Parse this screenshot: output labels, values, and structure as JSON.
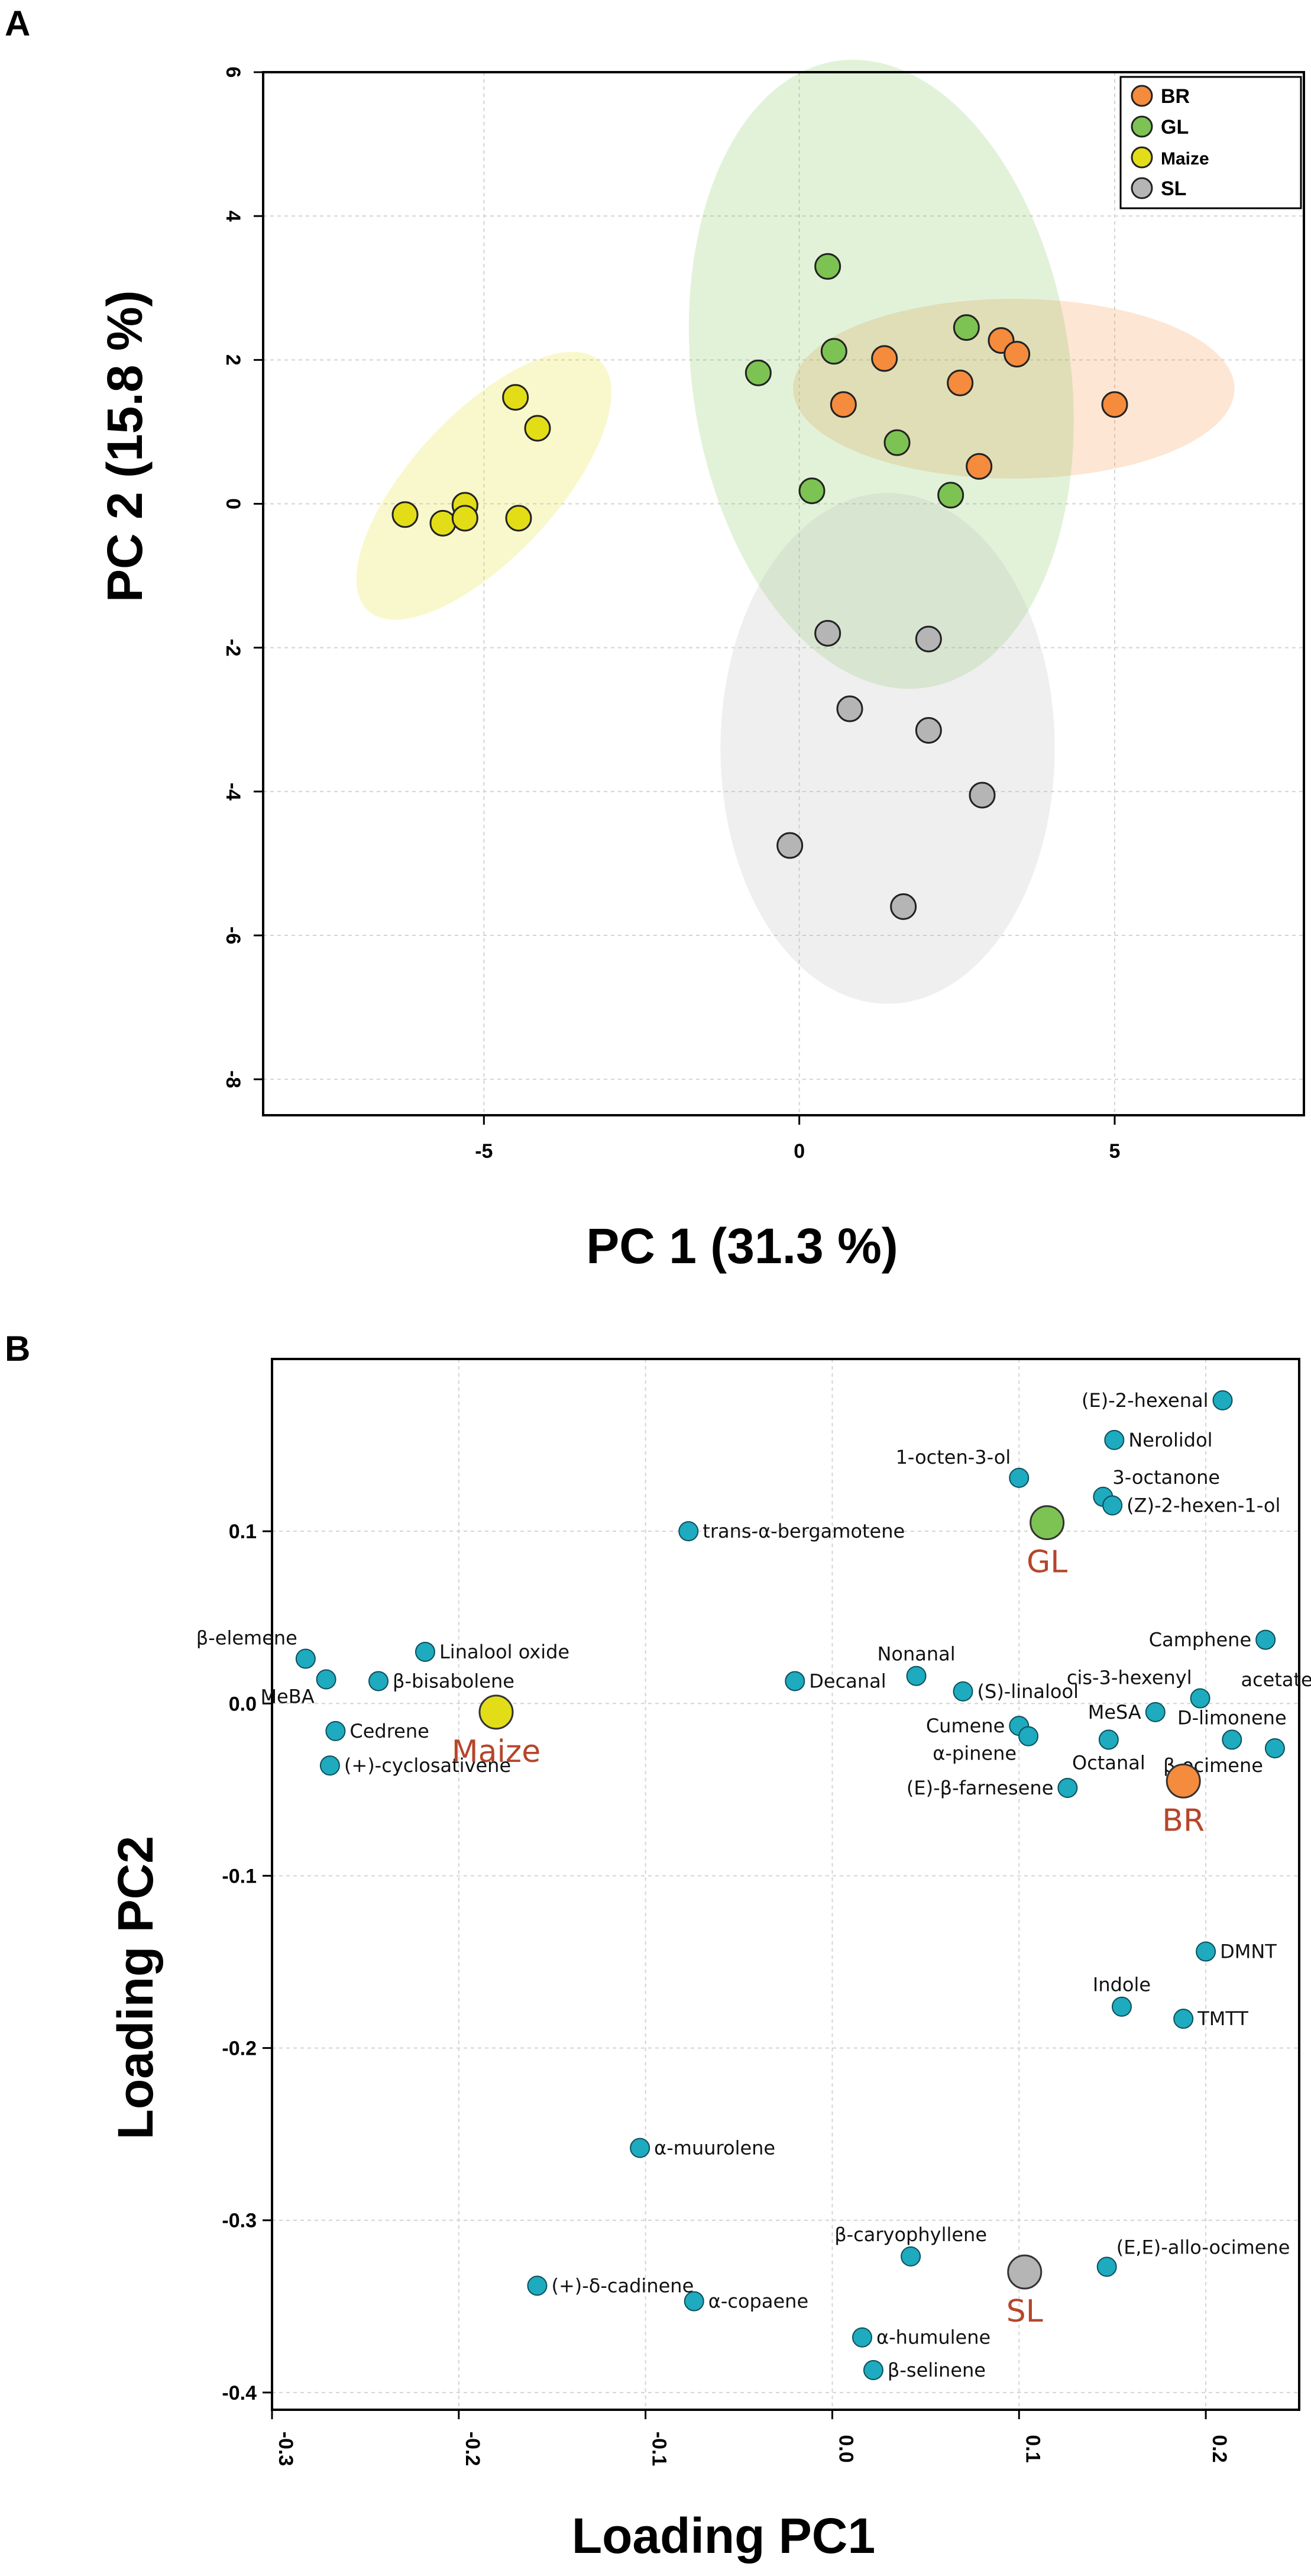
{
  "panels": {
    "a": "A",
    "b": "B"
  },
  "colors": {
    "BR": "#f58b3c",
    "GL": "#7dc353",
    "Maize": "#e3dd18",
    "SL": "#b5b5b5",
    "loading": "#1eaabf",
    "group_text": "#b5462a"
  },
  "chart_data": [
    {
      "type": "scatter",
      "xlabel": "PC 1 (31.3 %)",
      "ylabel": "PC 2 (15.8 %)",
      "xlim": [
        -8.5,
        8
      ],
      "ylim": [
        -8.5,
        6
      ],
      "xticks": [
        -5,
        0,
        5
      ],
      "yticks": [
        6,
        4,
        2,
        0,
        -2,
        -4,
        -6,
        -8
      ],
      "legend": [
        "BR",
        "GL",
        "Maize",
        "SL"
      ],
      "series": [
        {
          "name": "BR",
          "points": [
            [
              1.35,
              2.02
            ],
            [
              0.7,
              1.38
            ],
            [
              2.55,
              1.68
            ],
            [
              3.2,
              2.27
            ],
            [
              3.45,
              2.08
            ],
            [
              5.0,
              1.38
            ],
            [
              2.85,
              0.52
            ]
          ],
          "ellipse": {
            "cx": 3.4,
            "cy": 1.6,
            "rx": 3.5,
            "ry": 1.25,
            "angle": 0
          }
        },
        {
          "name": "GL",
          "points": [
            [
              0.45,
              3.3
            ],
            [
              -0.65,
              1.82
            ],
            [
              0.55,
              2.12
            ],
            [
              2.65,
              2.45
            ],
            [
              1.55,
              0.85
            ],
            [
              0.2,
              0.18
            ],
            [
              2.4,
              0.12
            ]
          ],
          "ellipse": {
            "cx": 1.3,
            "cy": 1.8,
            "rx": 3.0,
            "ry": 4.4,
            "angle": 8
          }
        },
        {
          "name": "Maize",
          "points": [
            [
              -4.5,
              1.48
            ],
            [
              -4.15,
              1.05
            ],
            [
              -6.25,
              -0.15
            ],
            [
              -5.3,
              -0.02
            ],
            [
              -5.65,
              -0.27
            ],
            [
              -5.3,
              -0.2
            ],
            [
              -4.45,
              -0.2
            ]
          ],
          "ellipse": {
            "cx": -5.0,
            "cy": 0.25,
            "rx": 2.7,
            "ry": 1.0,
            "angle": 47
          }
        },
        {
          "name": "SL",
          "points": [
            [
              0.45,
              -1.8
            ],
            [
              2.05,
              -1.88
            ],
            [
              0.8,
              -2.85
            ],
            [
              2.05,
              -3.15
            ],
            [
              2.9,
              -4.05
            ],
            [
              -0.15,
              -4.75
            ],
            [
              1.65,
              -5.6
            ]
          ],
          "ellipse": {
            "cx": 1.4,
            "cy": -3.4,
            "rx": 2.65,
            "ry": 3.55,
            "angle": 0
          }
        }
      ]
    },
    {
      "type": "scatter",
      "xlabel": "Loading PC1",
      "ylabel": "Loading PC2",
      "xlim": [
        -0.3,
        0.25
      ],
      "ylim": [
        -0.41,
        0.2
      ],
      "xticks": [
        "-0.3",
        "-0.2",
        "-0.1",
        "0.0",
        "0.1",
        "0.2"
      ],
      "yticks": [
        "0.1",
        "0.0",
        "-0.1",
        "-0.2",
        "-0.3",
        "-0.4"
      ],
      "points": [
        {
          "label": "(E)-2-hexenal",
          "x": 0.209,
          "y": 0.176,
          "side": "left"
        },
        {
          "label": "Nerolidol",
          "x": 0.151,
          "y": 0.153,
          "side": "right"
        },
        {
          "label": "1-octen-3-ol",
          "x": 0.1,
          "y": 0.131,
          "side": "left-up"
        },
        {
          "label": "3-octanone",
          "x": 0.145,
          "y": 0.12,
          "side": "right-up"
        },
        {
          "label": "(Z)-2-hexen-1-ol",
          "x": 0.15,
          "y": 0.115,
          "side": "right"
        },
        {
          "label": "trans-α-bergamotene",
          "x": -0.077,
          "y": 0.1,
          "side": "right"
        },
        {
          "label": "β-elemene",
          "x": -0.282,
          "y": 0.026,
          "side": "left-up"
        },
        {
          "label": "Linalool oxide",
          "x": -0.218,
          "y": 0.03,
          "side": "right"
        },
        {
          "label": "MeBA",
          "x": -0.271,
          "y": 0.014,
          "side": "left-down"
        },
        {
          "label": "β-bisabolene",
          "x": -0.243,
          "y": 0.013,
          "side": "right"
        },
        {
          "label": "Cedrene",
          "x": -0.266,
          "y": -0.016,
          "side": "right"
        },
        {
          "label": "(+)-cyclosativene",
          "x": -0.269,
          "y": -0.036,
          "side": "right"
        },
        {
          "label": "Nonanal",
          "x": 0.045,
          "y": 0.016,
          "side": "up"
        },
        {
          "label": "Decanal",
          "x": -0.02,
          "y": 0.013,
          "side": "right"
        },
        {
          "label": "(S)-linalool",
          "x": 0.07,
          "y": 0.007,
          "side": "right"
        },
        {
          "label": "Camphene",
          "x": 0.232,
          "y": 0.037,
          "side": "left"
        },
        {
          "label": "cis-3-hexenyl",
          "x": 0.197,
          "y": 0.003,
          "side": "left-up"
        },
        {
          "label": "acetate",
          "x": 0.238,
          "y": 0.01,
          "side": "label-only"
        },
        {
          "label": "MeSA",
          "x": 0.173,
          "y": -0.005,
          "side": "left"
        },
        {
          "label": "Cumene",
          "x": 0.1,
          "y": -0.013,
          "side": "left"
        },
        {
          "label": "α-pinene",
          "x": 0.105,
          "y": -0.019,
          "side": "left-down"
        },
        {
          "label": "Octanal",
          "x": 0.148,
          "y": -0.021,
          "side": "down"
        },
        {
          "label": "D-limonene",
          "x": 0.214,
          "y": -0.021,
          "side": "up"
        },
        {
          "label": "β-ocimene",
          "x": 0.237,
          "y": -0.026,
          "side": "left-down"
        },
        {
          "label": "(E)-β-farnesene",
          "x": 0.126,
          "y": -0.049,
          "side": "left"
        },
        {
          "label": "DMNT",
          "x": 0.2,
          "y": -0.144,
          "side": "right"
        },
        {
          "label": "Indole",
          "x": 0.155,
          "y": -0.176,
          "side": "up"
        },
        {
          "label": "TMTT",
          "x": 0.188,
          "y": -0.183,
          "side": "right"
        },
        {
          "label": "α-muurolene",
          "x": -0.103,
          "y": -0.258,
          "side": "right"
        },
        {
          "label": "β-caryophyllene",
          "x": 0.042,
          "y": -0.321,
          "side": "up"
        },
        {
          "label": "(E,E)-allo-ocimene",
          "x": 0.147,
          "y": -0.327,
          "side": "right-up"
        },
        {
          "label": "(+)-δ-cadinene",
          "x": -0.158,
          "y": -0.338,
          "side": "right"
        },
        {
          "label": "α-copaene",
          "x": -0.074,
          "y": -0.347,
          "side": "right"
        },
        {
          "label": "α-humulene",
          "x": 0.016,
          "y": -0.368,
          "side": "right"
        },
        {
          "label": "β-selinene",
          "x": 0.022,
          "y": -0.387,
          "side": "right"
        }
      ],
      "groups": [
        {
          "name": "GL",
          "x": 0.115,
          "y": 0.105,
          "color": "#7dc353"
        },
        {
          "name": "Maize",
          "x": -0.18,
          "y": -0.005,
          "color": "#e3dd18"
        },
        {
          "name": "BR",
          "x": 0.188,
          "y": -0.045,
          "color": "#f58b3c"
        },
        {
          "name": "SL",
          "x": 0.103,
          "y": -0.33,
          "color": "#b5b5b5"
        }
      ]
    }
  ]
}
